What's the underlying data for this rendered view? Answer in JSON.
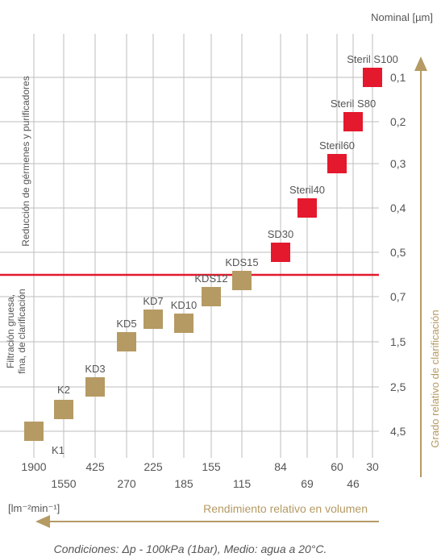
{
  "chart_data": {
    "type": "scatter",
    "unit_label": "Nominal [µm]",
    "x_unit_label": "[lm⁻²min⁻¹]",
    "x_axis_title": "Rendimiento relativo en volumen",
    "y_axis_title": "Grado relativo de clarificación",
    "x_ticks": [
      "1900",
      "1550",
      "425",
      "270",
      "225",
      "185",
      "155",
      "115",
      "84",
      "69",
      "60",
      "46",
      "30"
    ],
    "y_ticks": [
      "0,1",
      "0,2",
      "0,3",
      "0,4",
      "0,5",
      "0,7",
      "1,5",
      "2,5",
      "4,5"
    ],
    "region_upper": "Reducción de gérmenes y purificadores",
    "region_lower": [
      "Filtración gruesa,",
      "fina, de clarificación"
    ],
    "footnote": "Condiciones: Δp - 100kPa (1bar), Medio: agua a 20°C.",
    "series": [
      {
        "color": "#b59a63",
        "points": [
          {
            "label": "K1",
            "x": "1900",
            "y": "4,5"
          },
          {
            "label": "K2",
            "x": "1550",
            "y": "2,5"
          },
          {
            "label": "KD3",
            "x": "425",
            "y": "2,5"
          },
          {
            "label": "KD5",
            "x": "270",
            "y": "1,5"
          },
          {
            "label": "KD7",
            "x": "225",
            "y": "1,5"
          },
          {
            "label": "KD10",
            "x": "185",
            "y": "0,7"
          },
          {
            "label": "KDS12",
            "x": "155",
            "y": "0,7"
          },
          {
            "label": "KDS15",
            "x": "115",
            "y": "0,7"
          }
        ]
      },
      {
        "color": "#e4192d",
        "points": [
          {
            "label": "SD30",
            "x": "84",
            "y": "0,5"
          },
          {
            "label": "Steril40",
            "x": "69",
            "y": "0,4"
          },
          {
            "label": "Steril60",
            "x": "60",
            "y": "0,3"
          },
          {
            "label": "Steril S80",
            "x": "46",
            "y": "0,2"
          },
          {
            "label": "Steril S100",
            "x": "30",
            "y": "0,1"
          }
        ]
      }
    ],
    "grid": true,
    "colors": {
      "grid": "#bdbdbd",
      "arrow": "#b59a63",
      "divider": "#e4192d",
      "text": "#555555"
    }
  }
}
